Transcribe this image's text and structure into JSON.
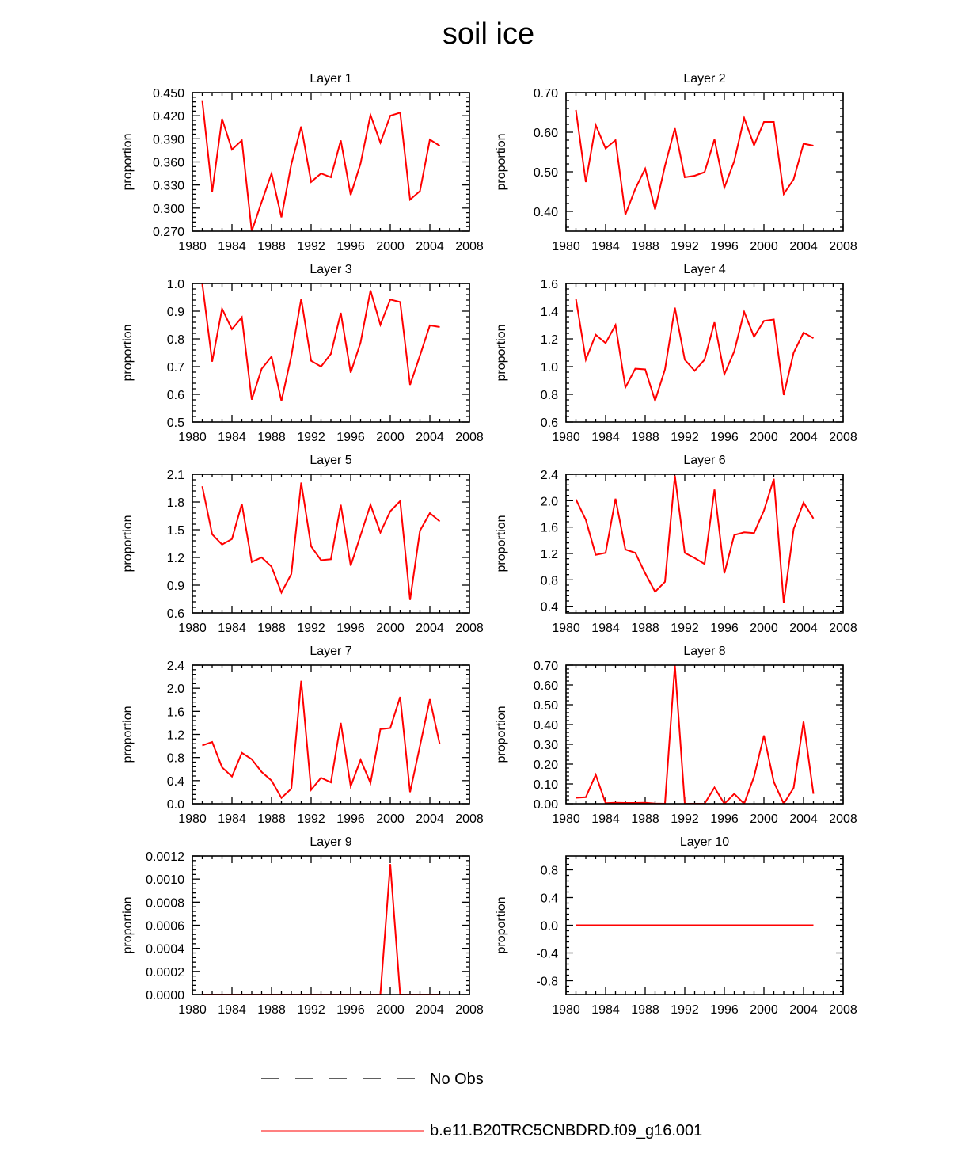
{
  "figure": {
    "title": "soil ice",
    "legend": [
      {
        "label": "No Obs",
        "style": "dashed",
        "color": "#000000"
      },
      {
        "label": "b.e11.B20TRC5CNBDRD.f09_g16.001",
        "style": "solid",
        "color": "#ff0000"
      }
    ]
  },
  "chart_data": [
    {
      "type": "line",
      "title": "Layer 1",
      "xlabel": "",
      "ylabel": "proportion",
      "xlim": [
        1980,
        2008
      ],
      "ylim": [
        0.27,
        0.45
      ],
      "xticks": [
        "1980",
        "1984",
        "1988",
        "1992",
        "1996",
        "2000",
        "2004",
        "2008"
      ],
      "yticks": [
        "0.270",
        "0.300",
        "0.330",
        "0.360",
        "0.390",
        "0.420",
        "0.450"
      ],
      "series": [
        {
          "name": "b.e11.B20TRC5CNBDRD.f09_g16.001",
          "color": "#ff0000",
          "x": [
            1981,
            1982,
            1983,
            1984,
            1985,
            1986,
            1987,
            1988,
            1989,
            1990,
            1991,
            1992,
            1993,
            1994,
            1995,
            1996,
            1997,
            1998,
            1999,
            2000,
            2001,
            2002,
            2003,
            2004,
            2005
          ],
          "values": [
            0.44,
            0.321,
            0.416,
            0.376,
            0.388,
            0.27,
            0.308,
            0.345,
            0.288,
            0.357,
            0.406,
            0.334,
            0.345,
            0.34,
            0.388,
            0.317,
            0.358,
            0.421,
            0.385,
            0.42,
            0.424,
            0.311,
            0.322,
            0.389,
            0.381
          ]
        }
      ]
    },
    {
      "type": "line",
      "title": "Layer 2",
      "xlabel": "",
      "ylabel": "proportion",
      "xlim": [
        1980,
        2008
      ],
      "ylim": [
        0.35,
        0.7
      ],
      "xticks": [
        "1980",
        "1984",
        "1988",
        "1992",
        "1996",
        "2000",
        "2004",
        "2008"
      ],
      "yticks": [
        "0.40",
        "0.50",
        "0.60",
        "0.70"
      ],
      "series": [
        {
          "name": "b.e11.B20TRC5CNBDRD.f09_g16.001",
          "color": "#ff0000",
          "x": [
            1981,
            1982,
            1983,
            1984,
            1985,
            1986,
            1987,
            1988,
            1989,
            1990,
            1991,
            1992,
            1993,
            1994,
            1995,
            1996,
            1997,
            1998,
            1999,
            2000,
            2001,
            2002,
            2003,
            2004,
            2005
          ],
          "values": [
            0.656,
            0.474,
            0.618,
            0.559,
            0.58,
            0.392,
            0.457,
            0.508,
            0.405,
            0.515,
            0.61,
            0.486,
            0.49,
            0.499,
            0.582,
            0.46,
            0.527,
            0.636,
            0.567,
            0.626,
            0.626,
            0.444,
            0.481,
            0.571,
            0.566
          ]
        }
      ]
    },
    {
      "type": "line",
      "title": "Layer 3",
      "xlabel": "",
      "ylabel": "proportion",
      "xlim": [
        1980,
        2008
      ],
      "ylim": [
        0.5,
        1.0
      ],
      "xticks": [
        "1980",
        "1984",
        "1988",
        "1992",
        "1996",
        "2000",
        "2004",
        "2008"
      ],
      "yticks": [
        "0.5",
        "0.6",
        "0.7",
        "0.8",
        "0.9",
        "1.0"
      ],
      "series": [
        {
          "name": "b.e11.B20TRC5CNBDRD.f09_g16.001",
          "color": "#ff0000",
          "x": [
            1981,
            1982,
            1983,
            1984,
            1985,
            1986,
            1987,
            1988,
            1989,
            1990,
            1991,
            1992,
            1993,
            1994,
            1995,
            1996,
            1997,
            1998,
            1999,
            2000,
            2001,
            2002,
            2003,
            2004,
            2005
          ],
          "values": [
            1.0,
            0.718,
            0.909,
            0.835,
            0.878,
            0.581,
            0.692,
            0.736,
            0.576,
            0.738,
            0.945,
            0.721,
            0.7,
            0.746,
            0.894,
            0.678,
            0.787,
            0.975,
            0.851,
            0.942,
            0.933,
            0.634,
            0.74,
            0.849,
            0.843
          ]
        }
      ]
    },
    {
      "type": "line",
      "title": "Layer 4",
      "xlabel": "",
      "ylabel": "proportion",
      "xlim": [
        1980,
        2008
      ],
      "ylim": [
        0.6,
        1.6
      ],
      "xticks": [
        "1980",
        "1984",
        "1988",
        "1992",
        "1996",
        "2000",
        "2004",
        "2008"
      ],
      "yticks": [
        "0.6",
        "0.8",
        "1.0",
        "1.2",
        "1.4",
        "1.6"
      ],
      "series": [
        {
          "name": "b.e11.B20TRC5CNBDRD.f09_g16.001",
          "color": "#ff0000",
          "x": [
            1981,
            1982,
            1983,
            1984,
            1985,
            1986,
            1987,
            1988,
            1989,
            1990,
            1991,
            1992,
            1993,
            1994,
            1995,
            1996,
            1997,
            1998,
            1999,
            2000,
            2001,
            2002,
            2003,
            2004,
            2005
          ],
          "values": [
            1.49,
            1.05,
            1.23,
            1.17,
            1.3,
            0.85,
            0.985,
            0.98,
            0.755,
            0.98,
            1.425,
            1.05,
            0.97,
            1.05,
            1.32,
            0.945,
            1.11,
            1.395,
            1.215,
            1.33,
            1.34,
            0.795,
            1.1,
            1.245,
            1.205
          ]
        }
      ]
    },
    {
      "type": "line",
      "title": "Layer 5",
      "xlabel": "",
      "ylabel": "proportion",
      "xlim": [
        1980,
        2008
      ],
      "ylim": [
        0.6,
        2.1
      ],
      "xticks": [
        "1980",
        "1984",
        "1988",
        "1992",
        "1996",
        "2000",
        "2004",
        "2008"
      ],
      "yticks": [
        "0.6",
        "0.9",
        "1.2",
        "1.5",
        "1.8",
        "2.1"
      ],
      "series": [
        {
          "name": "b.e11.B20TRC5CNBDRD.f09_g16.001",
          "color": "#ff0000",
          "x": [
            1981,
            1982,
            1983,
            1984,
            1985,
            1986,
            1987,
            1988,
            1989,
            1990,
            1991,
            1992,
            1993,
            1994,
            1995,
            1996,
            1997,
            1998,
            1999,
            2000,
            2001,
            2002,
            2003,
            2004,
            2005
          ],
          "values": [
            1.97,
            1.45,
            1.34,
            1.4,
            1.78,
            1.15,
            1.2,
            1.1,
            0.82,
            1.02,
            2.01,
            1.32,
            1.17,
            1.18,
            1.77,
            1.11,
            1.44,
            1.77,
            1.47,
            1.7,
            1.81,
            0.74,
            1.49,
            1.68,
            1.59
          ]
        }
      ]
    },
    {
      "type": "line",
      "title": "Layer 6",
      "xlabel": "",
      "ylabel": "proportion",
      "xlim": [
        1980,
        2008
      ],
      "ylim": [
        0.3,
        2.4
      ],
      "xticks": [
        "1980",
        "1984",
        "1988",
        "1992",
        "1996",
        "2000",
        "2004",
        "2008"
      ],
      "yticks": [
        "0.4",
        "0.8",
        "1.2",
        "1.6",
        "2.0",
        "2.4"
      ],
      "series": [
        {
          "name": "b.e11.B20TRC5CNBDRD.f09_g16.001",
          "color": "#ff0000",
          "x": [
            1981,
            1982,
            1983,
            1984,
            1985,
            1986,
            1987,
            1988,
            1989,
            1990,
            1991,
            1992,
            1993,
            1994,
            1995,
            1996,
            1997,
            1998,
            1999,
            2000,
            2001,
            2002,
            2003,
            2004,
            2005
          ],
          "values": [
            2.02,
            1.71,
            1.18,
            1.21,
            2.03,
            1.26,
            1.21,
            0.9,
            0.62,
            0.77,
            2.38,
            1.21,
            1.13,
            1.04,
            2.17,
            0.9,
            1.48,
            1.52,
            1.51,
            1.85,
            2.33,
            0.45,
            1.57,
            1.97,
            1.73
          ]
        }
      ]
    },
    {
      "type": "line",
      "title": "Layer 7",
      "xlabel": "",
      "ylabel": "proportion",
      "xlim": [
        1980,
        2008
      ],
      "ylim": [
        0.0,
        2.4
      ],
      "xticks": [
        "1980",
        "1984",
        "1988",
        "1992",
        "1996",
        "2000",
        "2004",
        "2008"
      ],
      "yticks": [
        "0.0",
        "0.4",
        "0.8",
        "1.2",
        "1.6",
        "2.0",
        "2.4"
      ],
      "series": [
        {
          "name": "b.e11.B20TRC5CNBDRD.f09_g16.001",
          "color": "#ff0000",
          "x": [
            1981,
            1982,
            1983,
            1984,
            1985,
            1986,
            1987,
            1988,
            1989,
            1990,
            1991,
            1992,
            1993,
            1994,
            1995,
            1996,
            1997,
            1998,
            1999,
            2000,
            2001,
            2002,
            2003,
            2004,
            2005
          ],
          "values": [
            1.01,
            1.07,
            0.63,
            0.47,
            0.88,
            0.77,
            0.55,
            0.4,
            0.1,
            0.26,
            2.13,
            0.24,
            0.45,
            0.37,
            1.4,
            0.3,
            0.76,
            0.36,
            1.29,
            1.31,
            1.85,
            0.2,
            1.0,
            1.81,
            1.03
          ]
        }
      ]
    },
    {
      "type": "line",
      "title": "Layer 8",
      "xlabel": "",
      "ylabel": "proportion",
      "xlim": [
        1980,
        2008
      ],
      "ylim": [
        0.0,
        0.7
      ],
      "xticks": [
        "1980",
        "1984",
        "1988",
        "1992",
        "1996",
        "2000",
        "2004",
        "2008"
      ],
      "yticks": [
        "0.00",
        "0.10",
        "0.20",
        "0.30",
        "0.40",
        "0.50",
        "0.60",
        "0.70"
      ],
      "series": [
        {
          "name": "b.e11.B20TRC5CNBDRD.f09_g16.001",
          "color": "#ff0000",
          "x": [
            1981,
            1982,
            1983,
            1984,
            1985,
            1986,
            1987,
            1988,
            1989,
            1990,
            1991,
            1992,
            1993,
            1994,
            1995,
            1996,
            1997,
            1998,
            1999,
            2000,
            2001,
            2002,
            2003,
            2004,
            2005
          ],
          "values": [
            0.03,
            0.033,
            0.147,
            0.003,
            0.005,
            0.004,
            0.004,
            0.005,
            0.001,
            0.0,
            0.7,
            0.0,
            0.0,
            0.0,
            0.082,
            0.0,
            0.05,
            0.0,
            0.137,
            0.345,
            0.11,
            0.0,
            0.08,
            0.415,
            0.05
          ]
        }
      ]
    },
    {
      "type": "line",
      "title": "Layer 9",
      "xlabel": "",
      "ylabel": "proportion",
      "xlim": [
        1980,
        2008
      ],
      "ylim": [
        0.0,
        0.0012
      ],
      "xticks": [
        "1980",
        "1984",
        "1988",
        "1992",
        "1996",
        "2000",
        "2004",
        "2008"
      ],
      "yticks": [
        "0.0000",
        "0.0002",
        "0.0004",
        "0.0006",
        "0.0008",
        "0.0010",
        "0.0012"
      ],
      "series": [
        {
          "name": "b.e11.B20TRC5CNBDRD.f09_g16.001",
          "color": "#ff0000",
          "x": [
            1981,
            1982,
            1983,
            1984,
            1985,
            1986,
            1987,
            1988,
            1989,
            1990,
            1991,
            1992,
            1993,
            1994,
            1995,
            1996,
            1997,
            1998,
            1999,
            2000,
            2001,
            2002,
            2003,
            2004,
            2005
          ],
          "values": [
            0,
            0,
            0,
            0,
            0,
            0,
            0,
            0,
            0,
            0,
            0,
            0,
            0,
            0,
            0,
            0,
            0,
            0,
            0,
            0.00113,
            0,
            0,
            0,
            0,
            0
          ]
        }
      ]
    },
    {
      "type": "line",
      "title": "Layer 10",
      "xlabel": "",
      "ylabel": "proportion",
      "xlim": [
        1980,
        2008
      ],
      "ylim": [
        -1.0,
        1.0
      ],
      "xticks": [
        "1980",
        "1984",
        "1988",
        "1992",
        "1996",
        "2000",
        "2004",
        "2008"
      ],
      "yticks": [
        "-0.8",
        "-0.4",
        "0.0",
        "0.4",
        "0.8"
      ],
      "series": [
        {
          "name": "b.e11.B20TRC5CNBDRD.f09_g16.001",
          "color": "#ff0000",
          "x": [
            1981,
            1982,
            1983,
            1984,
            1985,
            1986,
            1987,
            1988,
            1989,
            1990,
            1991,
            1992,
            1993,
            1994,
            1995,
            1996,
            1997,
            1998,
            1999,
            2000,
            2001,
            2002,
            2003,
            2004,
            2005
          ],
          "values": [
            0,
            0,
            0,
            0,
            0,
            0,
            0,
            0,
            0,
            0,
            0,
            0,
            0,
            0,
            0,
            0,
            0,
            0,
            0,
            0,
            0,
            0,
            0,
            0,
            0
          ]
        }
      ]
    }
  ]
}
